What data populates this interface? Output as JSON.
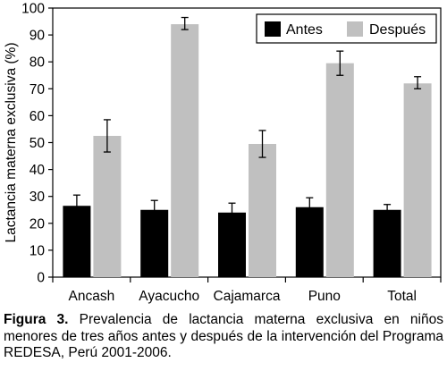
{
  "chart_data": {
    "type": "bar",
    "ylabel": "Lactancia materna exclusiva (%)",
    "ylim": [
      0,
      100
    ],
    "yticks": [
      0,
      10,
      20,
      30,
      40,
      50,
      60,
      70,
      80,
      90,
      100
    ],
    "categories": [
      "Ancash",
      "Ayacucho",
      "Cajamarca",
      "Puno",
      "Total"
    ],
    "series": [
      {
        "name": "Antes",
        "color": "#000000",
        "values": [
          26.5,
          25,
          24,
          26,
          25
        ],
        "error": [
          [
            23,
            30.5
          ],
          [
            21.5,
            28.5
          ],
          [
            20.5,
            27.5
          ],
          [
            22.5,
            29.5
          ],
          [
            23,
            27
          ]
        ]
      },
      {
        "name": "Después",
        "color": "#c0c0c0",
        "values": [
          52.5,
          94,
          49.5,
          79.5,
          72
        ],
        "error": [
          [
            46.5,
            58.5
          ],
          [
            92,
            96.5
          ],
          [
            44.5,
            54.5
          ],
          [
            75,
            84
          ],
          [
            70,
            74.5
          ]
        ]
      }
    ],
    "legend_position": "top-right",
    "grid": false
  },
  "caption": {
    "label": "Figura 3.",
    "text": " Prevalencia de lactancia materna exclusiva en niños menores de tres años antes y después de la intervención del Programa REDESA, Perú 2001-2006."
  }
}
